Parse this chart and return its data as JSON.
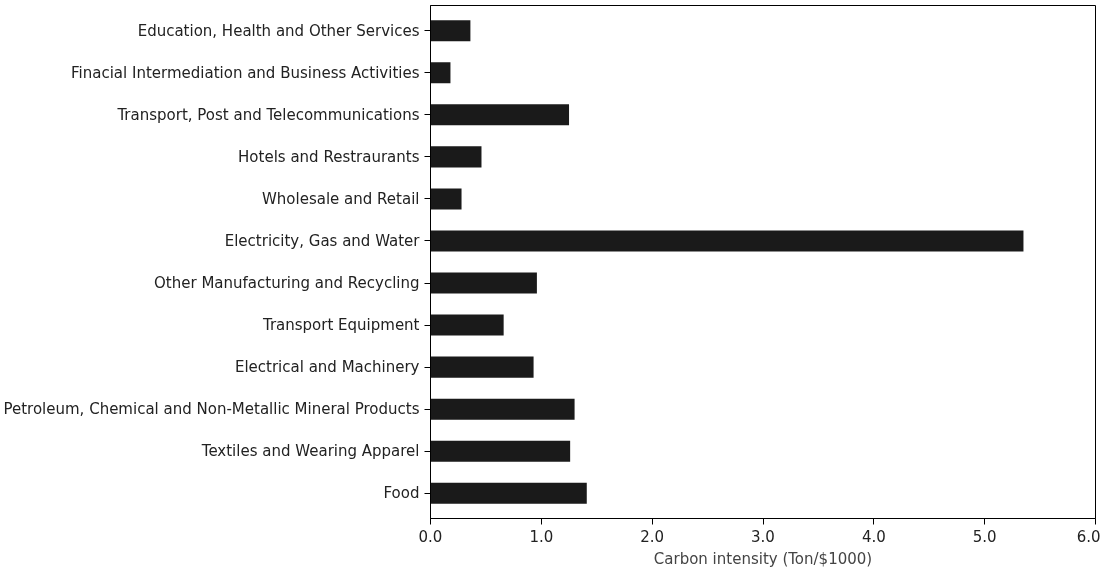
{
  "chart_data": {
    "type": "bar",
    "orientation": "horizontal",
    "categories": [
      "Education, Health and Other Services",
      "Finacial Intermediation and Business Activities",
      "Transport, Post and Telecommunications",
      "Hotels and Restraurants",
      "Wholesale and Retail",
      "Electricity, Gas and Water",
      "Other Manufacturing and Recycling",
      "Transport Equipment",
      "Electrical and Machinery",
      "Petroleum, Chemical and Non-Metallic Mineral Products",
      "Textiles and Wearing Apparel",
      "Food"
    ],
    "values": [
      0.36,
      0.18,
      1.25,
      0.46,
      0.28,
      5.35,
      0.96,
      0.66,
      0.93,
      1.3,
      1.26,
      1.41
    ],
    "color": "#1a1a1a",
    "xlabel": "Carbon intensity (Ton/$1000)",
    "xlim": [
      0,
      6
    ],
    "xticks": [
      {
        "value": 0,
        "label": "0.0"
      },
      {
        "value": 1,
        "label": "1.0"
      },
      {
        "value": 2,
        "label": "2.0"
      },
      {
        "value": 3,
        "label": "3.0"
      },
      {
        "value": 4,
        "label": "4.0"
      },
      {
        "value": 5,
        "label": "5.0"
      },
      {
        "value": 6,
        "label": "6.0"
      }
    ]
  }
}
